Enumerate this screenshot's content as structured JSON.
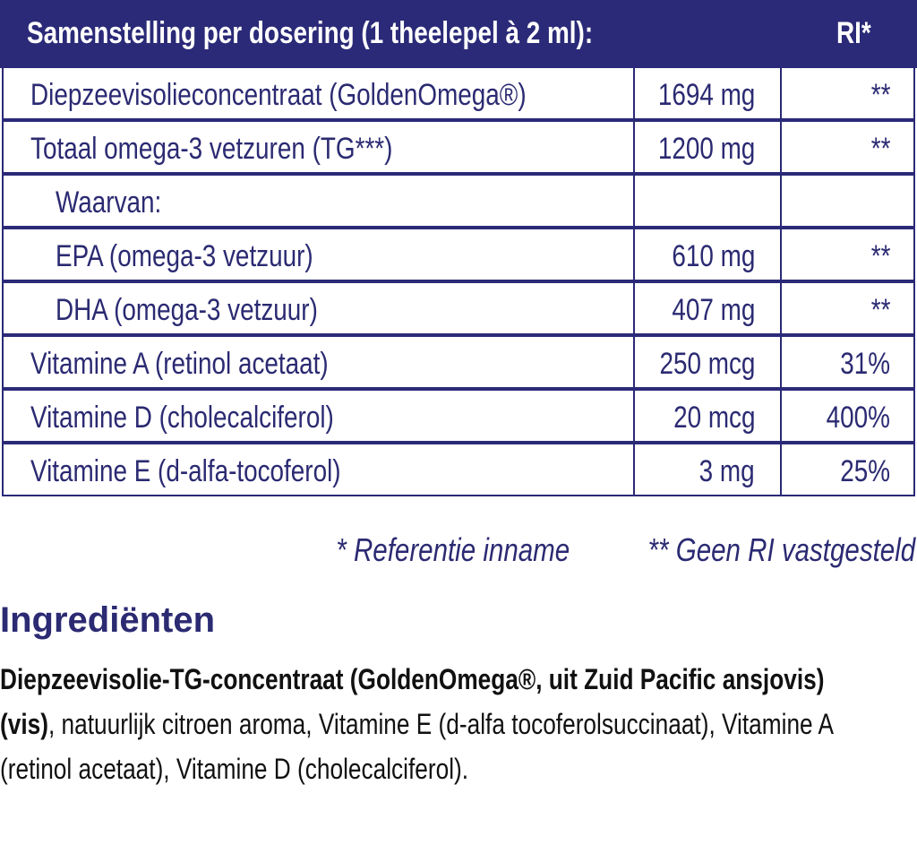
{
  "header": {
    "title": "Samenstelling per dosering (1 theelepel à 2 ml):",
    "ri": "RI*"
  },
  "table": {
    "rows": [
      [
        "Diepzeevisolieconcentraat (GoldenOmega®)",
        "1694 mg",
        "**"
      ],
      [
        "Totaal omega-3 vetzuren (TG***)",
        "1200 mg",
        "**"
      ],
      [
        "Waarvan:"
      ],
      [
        "EPA (omega-3 vetzuur)",
        "610 mg",
        "**"
      ],
      [
        "DHA (omega-3 vetzuur)",
        "407 mg",
        "**"
      ],
      [
        "Vitamine A (retinol acetaat)",
        "250 mcg",
        "31%"
      ],
      [
        "Vitamine D (cholecalciferol)",
        "20 mcg",
        "400%"
      ],
      [
        "Vitamine E (d-alfa-tocoferol)",
        "3 mg",
        "25%"
      ]
    ]
  },
  "footnotes": [
    "* Referentie inname",
    "** Geen RI vastgesteld"
  ],
  "ingredients": {
    "title": "Ingrediënten",
    "bold": "Diepzeevisolie-TG-concentraat (GoldenOmega®, uit Zuid Pacific ansjovis) (vis)",
    "text": ", natuurlijk citroen aroma, Vitamine E (d-alfa tocoferolsuccinaat), Vitamine A (retinol acetaat), Vitamine D (cholecalciferol)."
  }
}
